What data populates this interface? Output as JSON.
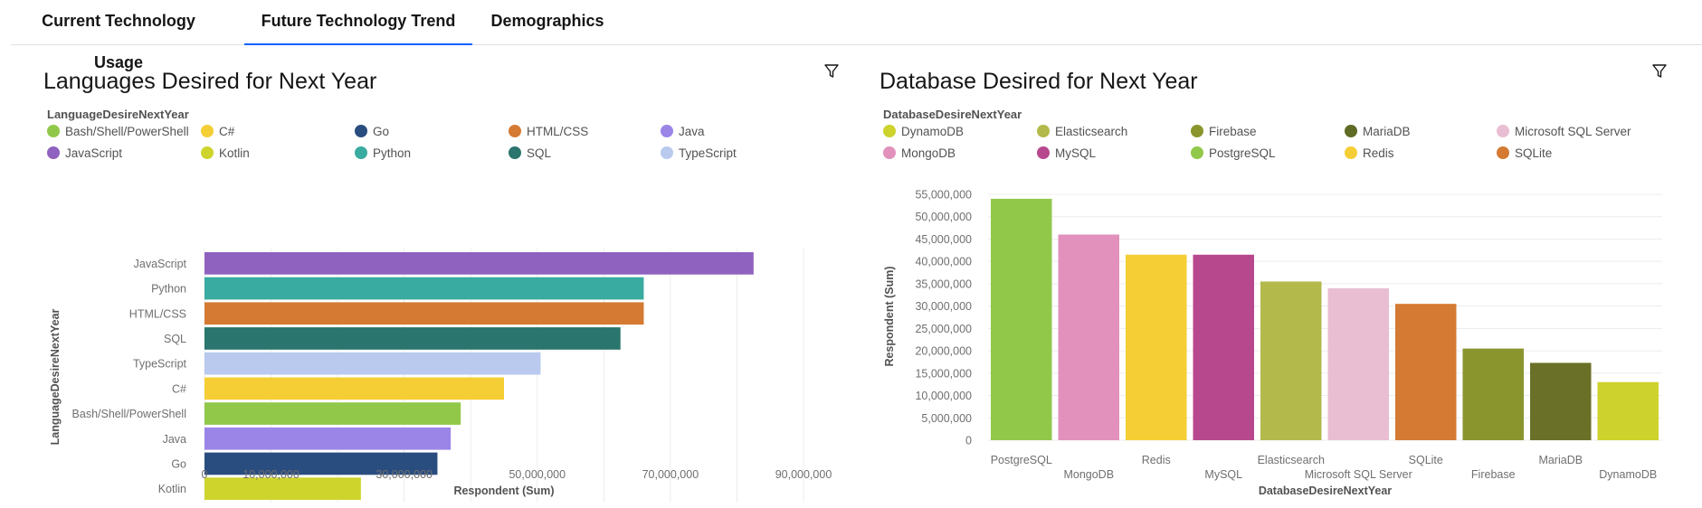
{
  "tabs": [
    {
      "label": "Current Technology Usage",
      "active": false
    },
    {
      "label": "Future Technology Trend",
      "active": true
    },
    {
      "label": "Demographics",
      "active": false
    }
  ],
  "left_panel": {
    "title": "Languages Desired for Next Year",
    "legend_title": "LanguageDesireNextYear",
    "legend": [
      {
        "label": "Bash/Shell/PowerShell",
        "color": "#91c84a"
      },
      {
        "label": "C#",
        "color": "#f5ce35"
      },
      {
        "label": "Go",
        "color": "#2a4d80"
      },
      {
        "label": "HTML/CSS",
        "color": "#d47a33"
      },
      {
        "label": "Java",
        "color": "#9b86e8"
      },
      {
        "label": "JavaScript",
        "color": "#9062bf"
      },
      {
        "label": "Kotlin",
        "color": "#ced42c"
      },
      {
        "label": "Python",
        "color": "#39aba0"
      },
      {
        "label": "SQL",
        "color": "#2a756d"
      },
      {
        "label": "TypeScript",
        "color": "#b9caee"
      }
    ]
  },
  "right_panel": {
    "title": "Database Desired for Next Year",
    "legend_title": "DatabaseDesireNextYear",
    "legend": [
      {
        "label": "DynamoDB",
        "color": "#cdd22c"
      },
      {
        "label": "Elasticsearch",
        "color": "#b3b94a"
      },
      {
        "label": "Firebase",
        "color": "#8a952e"
      },
      {
        "label": "MariaDB",
        "color": "#5f6b24"
      },
      {
        "label": "Microsoft SQL Server",
        "color": "#e9bed2"
      },
      {
        "label": "MongoDB",
        "color": "#e291bd"
      },
      {
        "label": "MySQL",
        "color": "#b8488d"
      },
      {
        "label": "PostgreSQL",
        "color": "#91c84a"
      },
      {
        "label": "Redis",
        "color": "#f5ce35"
      },
      {
        "label": "SQLite",
        "color": "#d47a33"
      }
    ]
  },
  "chart_data": [
    {
      "type": "bar",
      "orientation": "horizontal",
      "categories": [
        "JavaScript",
        "Python",
        "HTML/CSS",
        "SQL",
        "TypeScript",
        "C#",
        "Bash/Shell/PowerShell",
        "Java",
        "Go",
        "Kotlin"
      ],
      "values": [
        82500000,
        66000000,
        66000000,
        62500000,
        50500000,
        45000000,
        38500000,
        37000000,
        35000000,
        23500000
      ],
      "colors": [
        "#9062bf",
        "#39aba0",
        "#d47a33",
        "#2a756d",
        "#b9caee",
        "#f5ce35",
        "#91c84a",
        "#9b86e8",
        "#2a4d80",
        "#ced42c"
      ],
      "xlabel": "Respondent (Sum)",
      "ylabel": "LanguageDesireNextYear",
      "xlim": [
        0,
        90000000
      ],
      "xticks": [
        0,
        10000000,
        30000000,
        50000000,
        70000000,
        90000000
      ],
      "xtick_labels": [
        "0",
        "10,000,000",
        "30,000,000",
        "50,000,000",
        "70,000,000",
        "90,000,000"
      ],
      "grid": true
    },
    {
      "type": "bar",
      "orientation": "vertical",
      "categories": [
        "PostgreSQL",
        "MongoDB",
        "Redis",
        "MySQL",
        "Elasticsearch",
        "Microsoft SQL Server",
        "SQLite",
        "Firebase",
        "MariaDB",
        "DynamoDB"
      ],
      "values": [
        54000000,
        46000000,
        41500000,
        41500000,
        35500000,
        34000000,
        30500000,
        20500000,
        17300000,
        13000000
      ],
      "colors": [
        "#91c84a",
        "#e291bd",
        "#f5ce35",
        "#b8488d",
        "#b3b94a",
        "#e9bed2",
        "#d47a33",
        "#8a952e",
        "#6b7028",
        "#cdd22c"
      ],
      "xlabel": "DatabaseDesireNextYear",
      "ylabel": "Respondent (Sum)",
      "ylim": [
        0,
        55000000
      ],
      "yticks": [
        0,
        5000000,
        10000000,
        15000000,
        20000000,
        25000000,
        30000000,
        35000000,
        40000000,
        45000000,
        50000000,
        55000000
      ],
      "ytick_labels": [
        "0",
        "5,000,000",
        "10,000,000",
        "15,000,000",
        "20,000,000",
        "25,000,000",
        "30,000,000",
        "35,000,000",
        "40,000,000",
        "45,000,000",
        "50,000,000",
        "55,000,000"
      ],
      "grid": true
    }
  ]
}
